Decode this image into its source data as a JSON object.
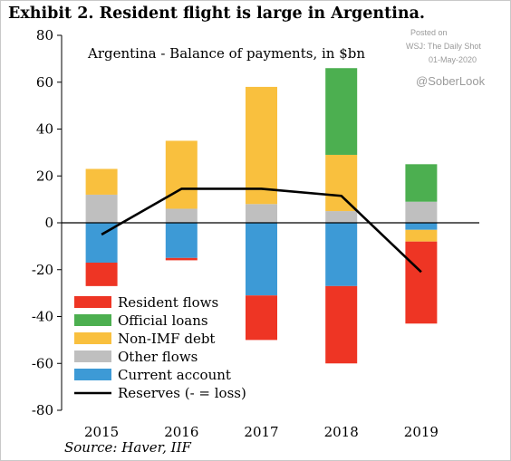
{
  "header": {
    "title": "Exhibit 2. Resident flight is large in Argentina."
  },
  "footer": {
    "source": "Source: Haver, IIF"
  },
  "watermark": {
    "line1": "Posted on",
    "line2": "WSJ: The Daily Shot",
    "line3": "01-May-2020",
    "handle": "@SoberLook"
  },
  "chart_data": {
    "type": "bar",
    "title": "Argentina - Balance of payments, in $bn",
    "xlabel": "",
    "ylabel": "",
    "categories": [
      "2015",
      "2016",
      "2017",
      "2018",
      "2019"
    ],
    "ylim": [
      -80,
      80
    ],
    "yticks": [
      80,
      60,
      40,
      20,
      0,
      -20,
      -40,
      -60,
      -80
    ],
    "stacked": true,
    "grid": false,
    "legend_position": "bottom-left",
    "series": [
      {
        "name": "Resident flows",
        "type": "bar",
        "color": "#ee3524",
        "values": [
          -10,
          -1,
          -19,
          -33,
          -35
        ]
      },
      {
        "name": "Official loans",
        "type": "bar",
        "color": "#4caf50",
        "values": [
          0,
          0,
          0,
          37,
          16
        ]
      },
      {
        "name": "Non-IMF debt",
        "type": "bar",
        "color": "#f9c03e",
        "values": [
          11,
          29,
          50,
          24,
          -5
        ]
      },
      {
        "name": "Other flows",
        "type": "bar",
        "color": "#bfbfbf",
        "values": [
          12,
          6,
          8,
          5,
          9
        ]
      },
      {
        "name": "Current account",
        "type": "bar",
        "color": "#3d9ad6",
        "values": [
          -17,
          -15,
          -31,
          -27,
          -3
        ]
      },
      {
        "name": "Reserves (- = loss)",
        "type": "line",
        "color": "#000000",
        "values": [
          -5,
          14.5,
          14.5,
          11.5,
          -21
        ]
      }
    ],
    "legend_order": [
      "Resident flows",
      "Official loans",
      "Non-IMF debt",
      "Other flows",
      "Current account",
      "Reserves (- = loss)"
    ]
  }
}
